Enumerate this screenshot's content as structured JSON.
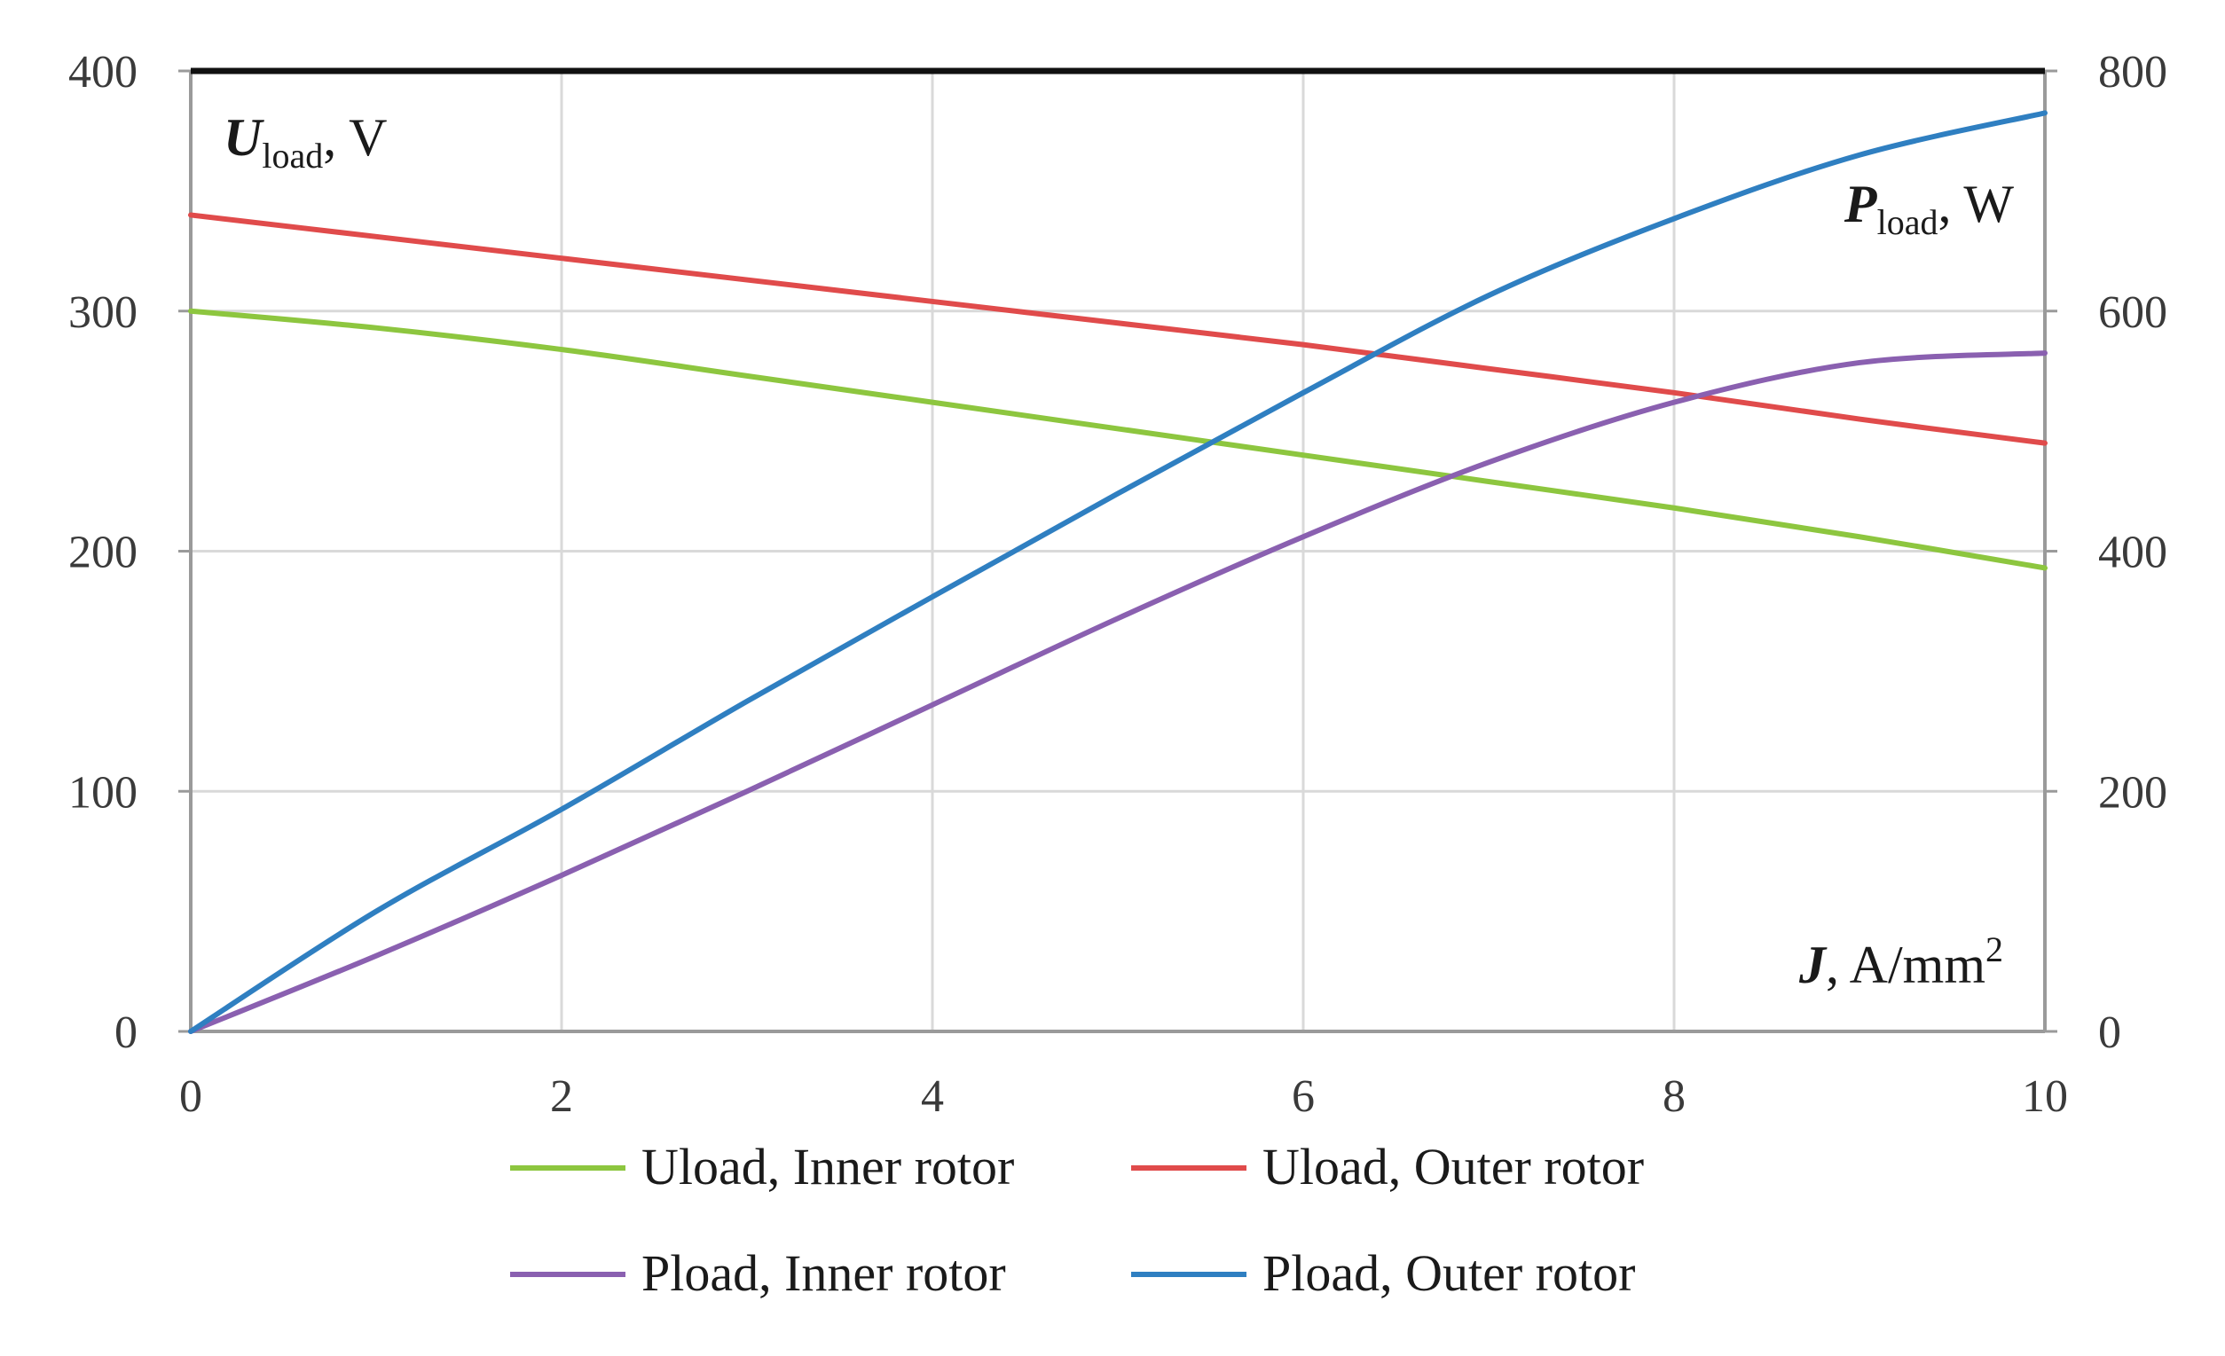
{
  "chart_data": {
    "type": "line",
    "x": [
      0,
      1,
      2,
      3,
      4,
      5,
      6,
      7,
      8,
      9,
      10
    ],
    "xlim": [
      0,
      10
    ],
    "ylim_left": [
      0,
      400
    ],
    "ylim_right": [
      0,
      800
    ],
    "x_ticks": [
      "0",
      "2",
      "4",
      "6",
      "8",
      "10"
    ],
    "y_left_ticks": [
      "0",
      "100",
      "200",
      "300",
      "400"
    ],
    "y_right_ticks": [
      "0",
      "200",
      "400",
      "600",
      "800"
    ],
    "xlabel": {
      "main": "J",
      "unit": ", A/mm",
      "sup": "2"
    },
    "ylabel_left": {
      "main": "U",
      "sub": "load",
      "unit": ", V"
    },
    "ylabel_right": {
      "main": "P",
      "sub": "load",
      "unit": ", W"
    },
    "grid": true,
    "legend_position": "bottom",
    "series": [
      {
        "name": "Uload, Inner rotor",
        "axis": "left",
        "color": "#8dc63f",
        "values": [
          300,
          293,
          284,
          273,
          262,
          251,
          240,
          229,
          218,
          206,
          193
        ]
      },
      {
        "name": "Uload, Outer rotor",
        "axis": "left",
        "color": "#e04b4b",
        "values": [
          340,
          331,
          322,
          313,
          304,
          295,
          286,
          276,
          266,
          255,
          245
        ]
      },
      {
        "name": "Pload, Inner rotor",
        "axis": "right",
        "color": "#8a60b0",
        "values": [
          0,
          63,
          130,
          200,
          272,
          344,
          412,
          474,
          524,
          557,
          565
        ]
      },
      {
        "name": "Pload, Outer rotor",
        "axis": "right",
        "color": "#2f7fc1",
        "values": [
          0,
          100,
          185,
          275,
          362,
          448,
          532,
          613,
          677,
          730,
          765
        ]
      }
    ]
  }
}
